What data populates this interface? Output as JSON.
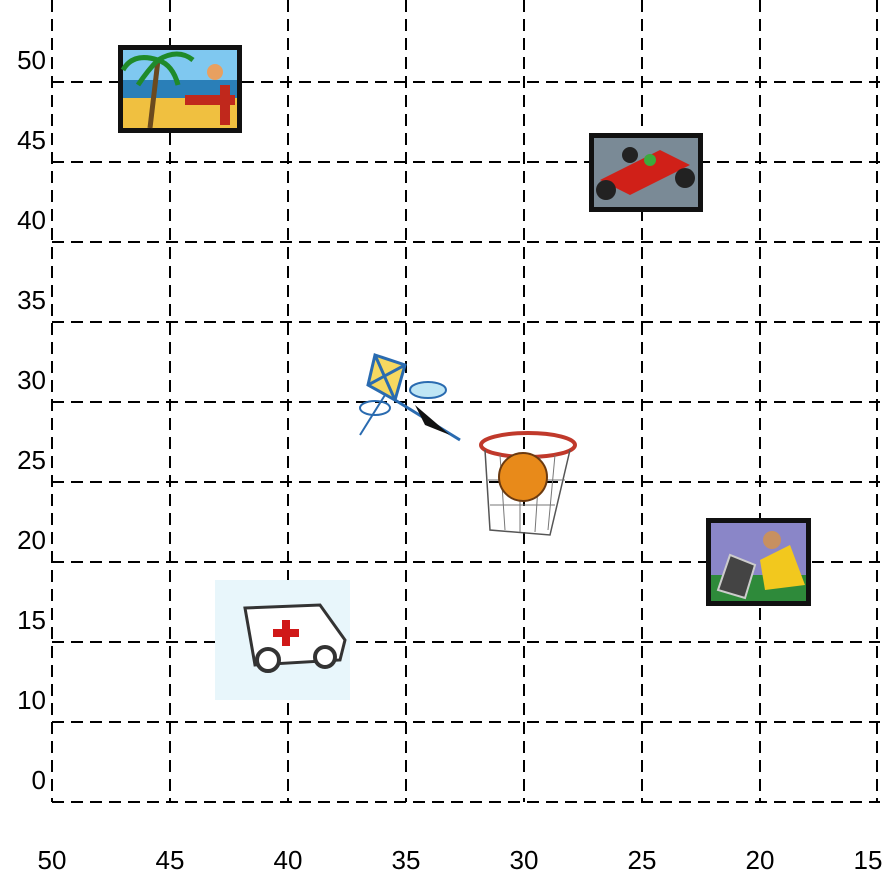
{
  "y_axis": {
    "labels": [
      "50",
      "45",
      "40",
      "35",
      "30",
      "25",
      "20",
      "15",
      "10",
      "0"
    ]
  },
  "x_axis": {
    "labels": [
      "50",
      "45",
      "40",
      "35",
      "30",
      "25",
      "20",
      "15"
    ]
  }
}
